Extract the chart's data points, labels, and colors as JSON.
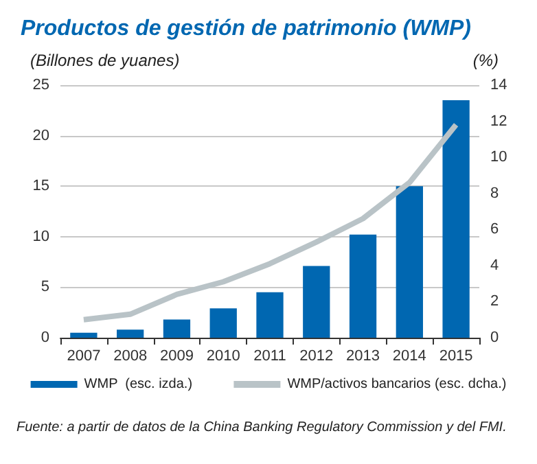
{
  "chart_data": {
    "type": "bar",
    "title": "Productos de gestión de patrimonio (WMP)",
    "ylabel": "(Billones de yuanes)",
    "y2label": "(%)",
    "categories": [
      "2007",
      "2008",
      "2009",
      "2010",
      "2011",
      "2012",
      "2013",
      "2014",
      "2015"
    ],
    "series": [
      {
        "name": "WMP  (esc. izda.)",
        "color": "#0067b1",
        "values": [
          0.5,
          0.8,
          1.8,
          2.9,
          4.5,
          7.1,
          10.2,
          15.0,
          23.5
        ]
      },
      {
        "name": "WMP/activos bancarios (esc. dcha.)",
        "type": "line",
        "axis": "y2",
        "color": "#b9c3c7",
        "values": [
          1.0,
          1.3,
          2.4,
          3.1,
          4.1,
          5.3,
          6.6,
          8.6,
          11.8
        ]
      }
    ],
    "ylim": [
      0,
      25
    ],
    "yticks": [
      0,
      5,
      10,
      15,
      20,
      25
    ],
    "y2lim": [
      0,
      14
    ],
    "y2ticks": [
      0,
      2,
      4,
      6,
      8,
      10,
      12,
      14
    ],
    "grid": "y",
    "legend": "bottom",
    "marker": "none",
    "annotations": [
      "Fuente: a partir de datos de la China Banking Regulatory Commission y del FMI."
    ]
  }
}
